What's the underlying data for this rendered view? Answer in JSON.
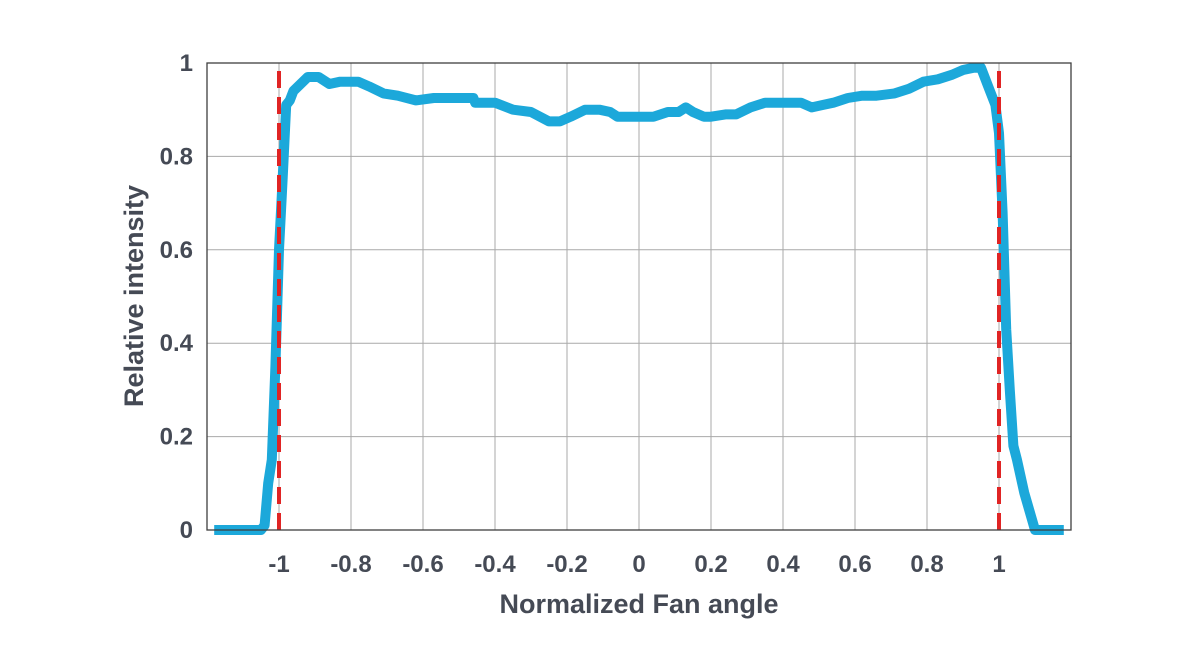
{
  "chart_data": {
    "type": "line",
    "xlabel": "Normalized Fan angle",
    "ylabel": "Relative intensity",
    "xlim": [
      -1.2,
      1.2
    ],
    "ylim": [
      0,
      1
    ],
    "xticks": [
      -1,
      -0.8,
      -0.6,
      -0.4,
      -0.2,
      0,
      0.2,
      0.4,
      0.6,
      0.8,
      1
    ],
    "xtick_labels": [
      "-1",
      "-0.8",
      "-0.6",
      "-0.4",
      "-0.2",
      "0",
      "0.2",
      "0.4",
      "0.6",
      "0.8",
      "1"
    ],
    "yticks": [
      0,
      0.2,
      0.4,
      0.6,
      0.8,
      1
    ],
    "ytick_labels": [
      "0",
      "0.2",
      "0.4",
      "0.6",
      "0.8",
      "1"
    ],
    "grid": true,
    "series": [
      {
        "color": "#1ca8da",
        "style": "solid",
        "x": [
          -1.18,
          -1.05,
          -1.04,
          -1.03,
          -1.02,
          -1.01,
          -1.0,
          -0.99,
          -0.98,
          -0.97,
          -0.96,
          -0.92,
          -0.89,
          -0.86,
          -0.83,
          -0.78,
          -0.75,
          -0.71,
          -0.67,
          -0.62,
          -0.57,
          -0.51,
          -0.46,
          -0.455,
          -0.4,
          -0.35,
          -0.3,
          -0.25,
          -0.22,
          -0.19,
          -0.15,
          -0.11,
          -0.08,
          -0.06,
          0.0,
          0.04,
          0.08,
          0.11,
          0.13,
          0.15,
          0.18,
          0.2,
          0.24,
          0.27,
          0.31,
          0.35,
          0.4,
          0.45,
          0.48,
          0.51,
          0.54,
          0.58,
          0.62,
          0.66,
          0.71,
          0.75,
          0.79,
          0.83,
          0.87,
          0.9,
          0.93,
          0.95,
          0.97,
          0.99,
          1.0,
          1.01,
          1.02,
          1.03,
          1.04,
          1.05,
          1.07,
          1.1,
          1.12,
          1.18
        ],
        "y": [
          0.0,
          0.0,
          0.01,
          0.1,
          0.15,
          0.35,
          0.6,
          0.75,
          0.91,
          0.92,
          0.94,
          0.97,
          0.97,
          0.955,
          0.96,
          0.96,
          0.95,
          0.935,
          0.93,
          0.92,
          0.925,
          0.925,
          0.925,
          0.915,
          0.915,
          0.9,
          0.895,
          0.875,
          0.875,
          0.885,
          0.9,
          0.9,
          0.895,
          0.885,
          0.885,
          0.885,
          0.895,
          0.895,
          0.905,
          0.895,
          0.885,
          0.885,
          0.89,
          0.89,
          0.905,
          0.915,
          0.915,
          0.915,
          0.905,
          0.91,
          0.915,
          0.925,
          0.93,
          0.93,
          0.935,
          0.945,
          0.96,
          0.965,
          0.975,
          0.985,
          0.99,
          0.99,
          0.95,
          0.91,
          0.85,
          0.68,
          0.43,
          0.3,
          0.18,
          0.15,
          0.08,
          0.0,
          0.0,
          0.0
        ]
      },
      {
        "color": "#e02424",
        "style": "dashed",
        "x": [
          -1,
          -1
        ],
        "y": [
          0,
          1
        ]
      },
      {
        "color": "#e02424",
        "style": "dashed",
        "x": [
          1,
          1
        ],
        "y": [
          0,
          1
        ]
      }
    ]
  }
}
